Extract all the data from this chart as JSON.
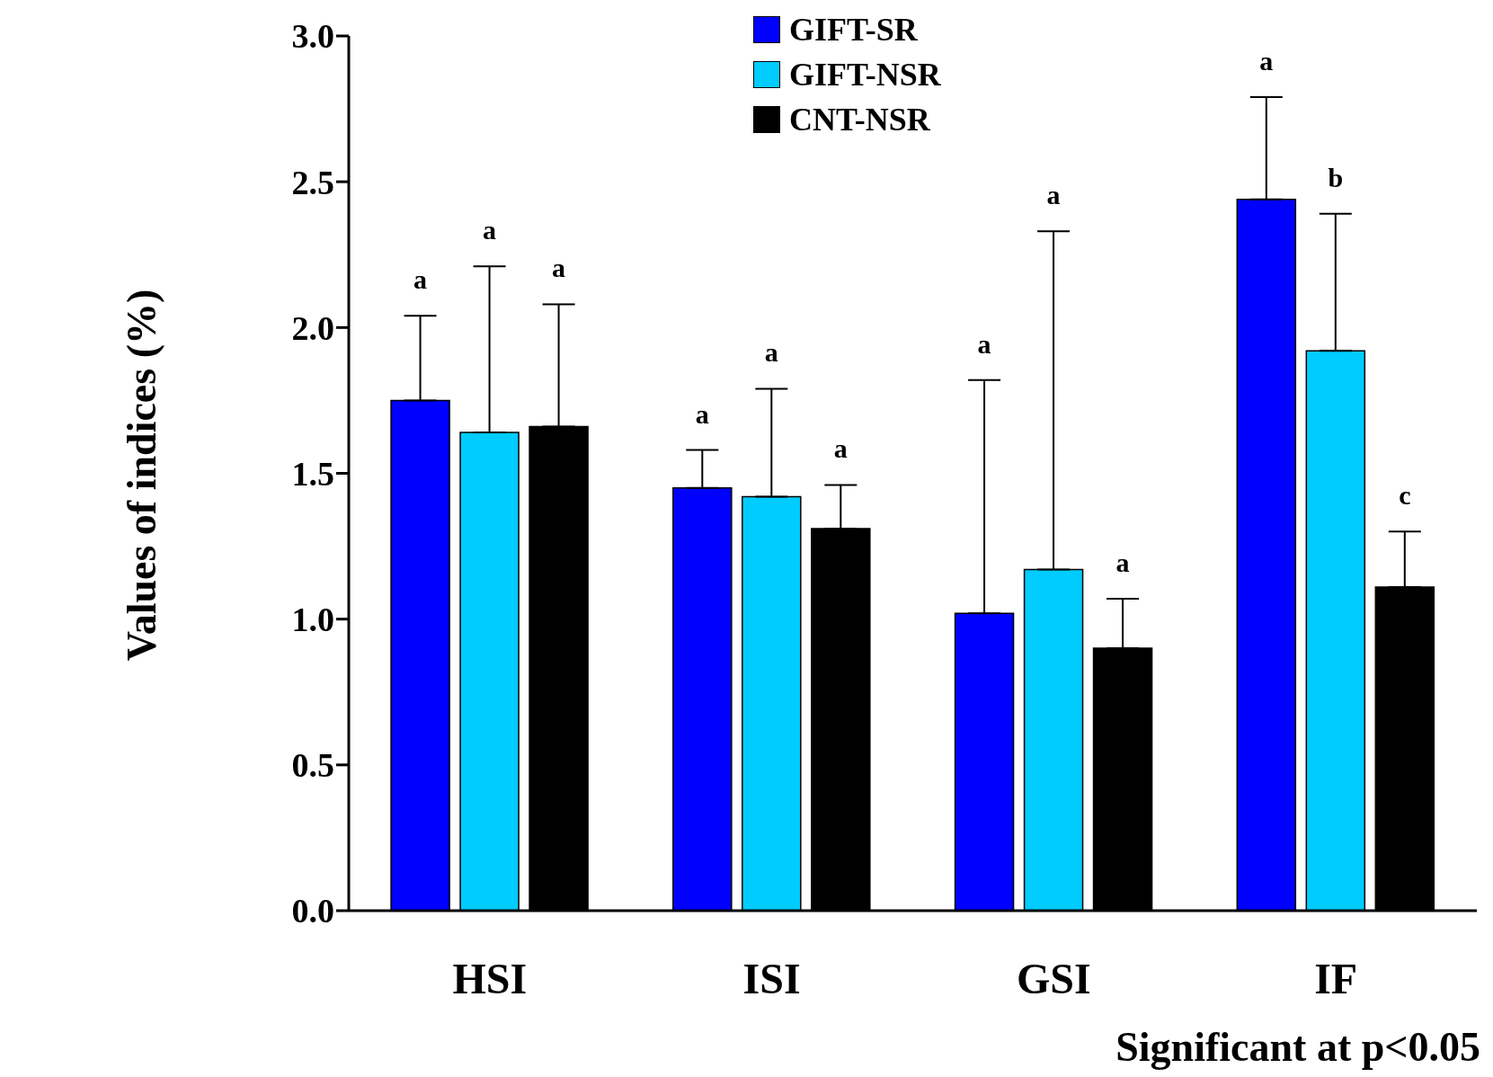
{
  "chart_data": {
    "type": "bar",
    "ylabel": "Values of indices (%)",
    "categories": [
      "HSI",
      "ISI",
      "GSI",
      "IF"
    ],
    "series": [
      {
        "name": "GIFT-SR",
        "color": "#0000ff",
        "values": [
          1.75,
          1.45,
          1.02,
          2.44
        ],
        "errors": [
          [
            1.75,
            2.04
          ],
          [
            1.45,
            1.58
          ],
          [
            1.02,
            1.82
          ],
          [
            2.44,
            2.79
          ]
        ]
      },
      {
        "name": "GIFT-NSR",
        "color": "#00ccff",
        "values": [
          1.64,
          1.42,
          1.17,
          1.92
        ],
        "errors": [
          [
            1.64,
            2.21
          ],
          [
            1.42,
            1.79
          ],
          [
            1.17,
            2.33
          ],
          [
            1.92,
            2.39
          ]
        ]
      },
      {
        "name": "CNT-NSR",
        "color": "#000000",
        "values": [
          1.66,
          1.31,
          0.9,
          1.11
        ],
        "errors": [
          [
            1.66,
            2.08
          ],
          [
            1.31,
            1.46
          ],
          [
            0.9,
            1.07
          ],
          [
            1.11,
            1.3
          ]
        ]
      }
    ],
    "ylim": [
      0,
      3
    ],
    "yticks": [
      {
        "value": 0,
        "label": "0.0"
      },
      {
        "value": 0.5,
        "label": "0.5"
      },
      {
        "value": 1,
        "label": "1.0"
      },
      {
        "value": 1.5,
        "label": "1.5"
      },
      {
        "value": 2,
        "label": "2.0"
      },
      {
        "value": 2.5,
        "label": "2.5"
      },
      {
        "value": 3,
        "label": "3.0"
      }
    ],
    "grid": false,
    "legend": "top",
    "annotations": [
      "a",
      "a",
      "a",
      "a",
      "a",
      "a",
      "a",
      "a",
      "a",
      "a",
      "b",
      "c",
      "Significant at p<0.05"
    ]
  }
}
